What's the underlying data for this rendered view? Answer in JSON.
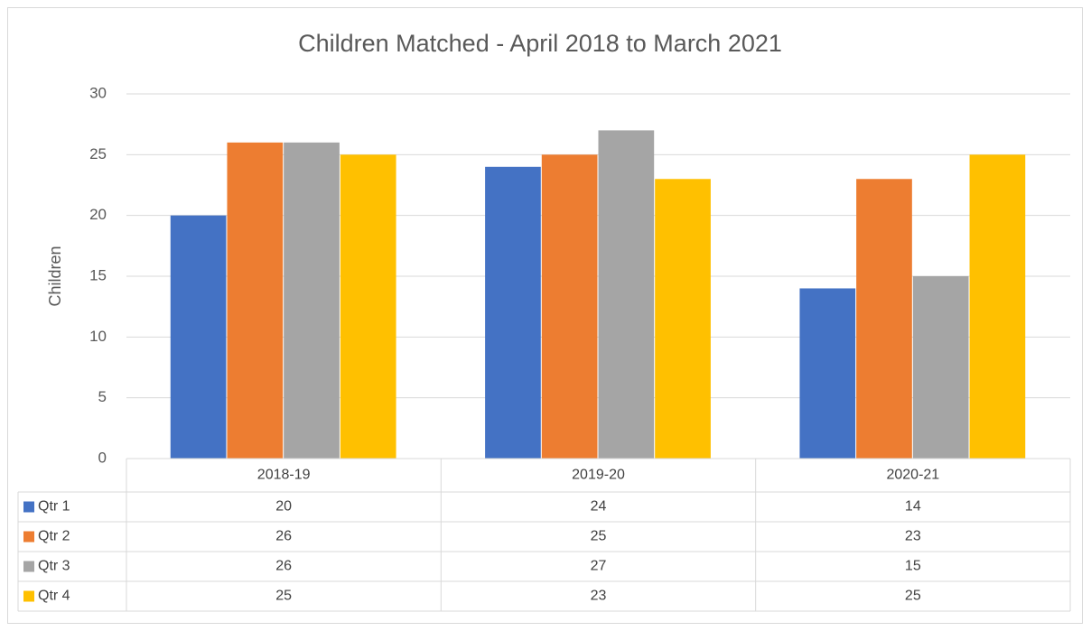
{
  "chart_data": {
    "type": "bar",
    "title": "Children Matched - April 2018 to March 2021",
    "y_label": "Children",
    "categories": [
      "2018-19",
      "2019-20",
      "2020-21"
    ],
    "series": [
      {
        "name": "Qtr 1",
        "color": "#4472c4",
        "values": [
          20,
          24,
          14
        ]
      },
      {
        "name": "Qtr 2",
        "color": "#ed7d31",
        "values": [
          26,
          25,
          23
        ]
      },
      {
        "name": "Qtr 3",
        "color": "#a5a5a5",
        "values": [
          26,
          27,
          15
        ]
      },
      {
        "name": "Qtr 4",
        "color": "#ffc000",
        "values": [
          25,
          23,
          25
        ]
      }
    ],
    "ylim": [
      0,
      30
    ],
    "yticks": [
      0,
      5,
      10,
      15,
      20,
      25,
      30
    ],
    "grid": true,
    "data_table": true
  }
}
